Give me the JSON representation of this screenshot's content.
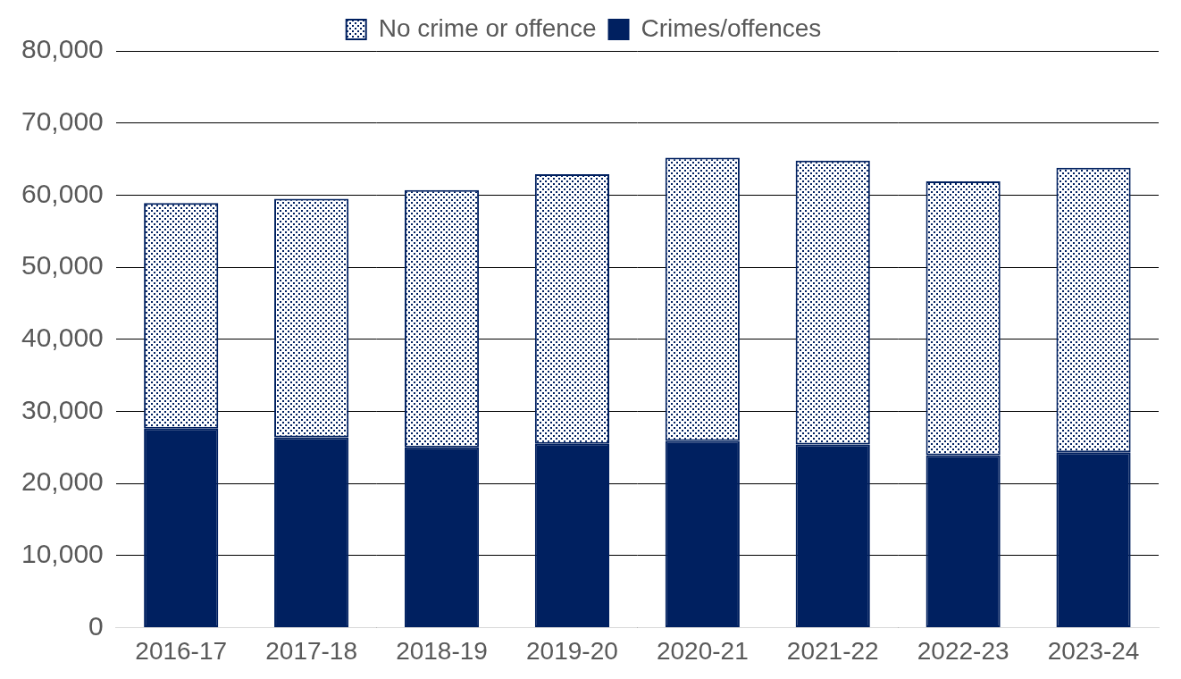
{
  "chart_data": {
    "type": "bar",
    "stacked": true,
    "grid": true,
    "legend": "top",
    "categories": [
      "2016-17",
      "2017-18",
      "2018-19",
      "2019-20",
      "2020-21",
      "2021-22",
      "2022-23",
      "2023-24"
    ],
    "series": [
      {
        "name": "Crimes/offences",
        "color": "#002060",
        "values": [
          27600,
          26400,
          25000,
          25500,
          25900,
          25400,
          23900,
          24300
        ]
      },
      {
        "name": "No crime or offence",
        "color": "#ffffff",
        "values": [
          31300,
          33100,
          35700,
          37400,
          39300,
          39400,
          38000,
          39500
        ]
      }
    ],
    "ylim": [
      0,
      80000
    ],
    "yticks": [
      0,
      {
        "value": 10000,
        "label": "10,000"
      },
      {
        "value": 20000,
        "label": "20,000"
      },
      {
        "value": 30000,
        "label": "30,000"
      },
      {
        "value": 40000,
        "label": "40,000"
      },
      {
        "value": 50000,
        "label": "50,000"
      },
      {
        "value": 60000,
        "label": "60,000"
      },
      {
        "value": 70000,
        "label": "70,000"
      },
      {
        "value": 80000,
        "label": "80,000"
      }
    ]
  }
}
